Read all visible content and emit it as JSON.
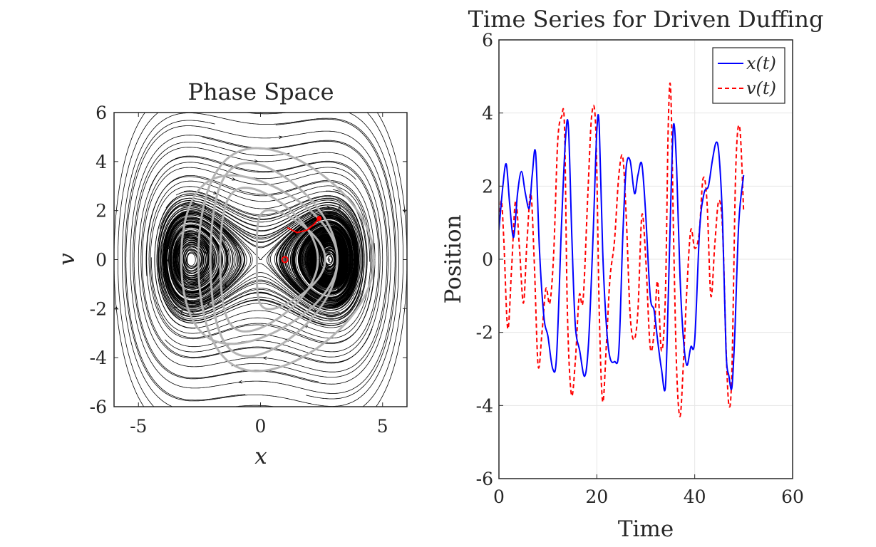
{
  "chart_data": [
    {
      "type": "line",
      "subtype": "phase-portrait-streamlines",
      "title": "Phase Space",
      "xlabel": "x",
      "ylabel": "v",
      "xlim": [
        -6,
        6
      ],
      "ylim": [
        -6,
        6
      ],
      "xticks": [
        "-5",
        "0",
        "5"
      ],
      "yticks": [
        "-6",
        "-4",
        "-2",
        "0",
        "2",
        "4",
        "6"
      ],
      "grid": false,
      "field": {
        "equation": "x' = v, v' = x - x^3/8",
        "fixed_points": [
          [
            0,
            0
          ],
          [
            2.83,
            0
          ]
        ]
      },
      "trajectory_color": "#b3b3b3",
      "streamline_color": "#000000",
      "trail_color": "#ff0000",
      "marker_start": [
        1.0,
        0.0
      ],
      "marker_current": [
        2.4,
        1.68
      ],
      "trail_points": [
        [
          1.1,
          1.3
        ],
        [
          1.5,
          1.1
        ],
        [
          1.9,
          1.2
        ],
        [
          2.2,
          1.45
        ],
        [
          2.4,
          1.68
        ]
      ]
    },
    {
      "type": "line",
      "title": "Time Series for Driven Duffing",
      "xlabel": "Time",
      "ylabel": "Position",
      "xlim": [
        0,
        60
      ],
      "ylim": [
        -6,
        6
      ],
      "xticks": [
        "0",
        "20",
        "40",
        "60"
      ],
      "yticks": [
        "-6",
        "-4",
        "-2",
        "0",
        "2",
        "4",
        "6"
      ],
      "grid": true,
      "legend_position": "top-right",
      "legend": [
        {
          "label": "x(t)",
          "color": "#0000ff",
          "dash": "solid"
        },
        {
          "label": "v(t)",
          "color": "#ff0000",
          "dash": "dashed"
        }
      ],
      "series": [
        {
          "name": "x(t)",
          "color": "#0000ff",
          "dash": "solid",
          "x": [
            0,
            0.8,
            1.5,
            2.2,
            3.0,
            3.8,
            4.6,
            5.4,
            6.2,
            6.8,
            7.5,
            8.3,
            9.2,
            10.0,
            11.0,
            11.8,
            12.8,
            13.6,
            14.2,
            14.9,
            15.6,
            16.5,
            17.5,
            18.3,
            19.2,
            20.0,
            20.5,
            21.2,
            22.0,
            22.7,
            23.6,
            24.5,
            25.3,
            26.0,
            26.8,
            27.7,
            28.4,
            29.2,
            30.0,
            30.9,
            31.7,
            32.4,
            33.2,
            34.0,
            34.6,
            35.2,
            35.7,
            36.3,
            37.0,
            37.7,
            38.4,
            39.2,
            40.0,
            41.0,
            41.9,
            42.8,
            43.6,
            44.4,
            45.0,
            45.7,
            46.4,
            47.0,
            47.6,
            48.2,
            49.0,
            50.0
          ],
          "y": [
            0.8,
            2.0,
            2.6,
            1.5,
            0.6,
            1.8,
            2.4,
            1.8,
            1.4,
            2.3,
            2.9,
            0.2,
            -1.6,
            -2.1,
            -3.0,
            -2.6,
            1.0,
            3.3,
            3.6,
            0.6,
            -1.8,
            -2.5,
            -3.2,
            -2.3,
            0.5,
            3.5,
            3.6,
            0.2,
            -1.9,
            -2.7,
            -2.8,
            -2.5,
            0.6,
            2.5,
            2.7,
            1.8,
            2.3,
            2.6,
            1.2,
            -1.0,
            -1.4,
            -2.2,
            -3.0,
            -3.5,
            -1.0,
            2.0,
            3.7,
            2.5,
            -0.5,
            -2.2,
            -2.9,
            -2.4,
            -2.2,
            0.8,
            1.8,
            2.0,
            2.7,
            3.2,
            2.8,
            1.0,
            -2.5,
            -3.2,
            -3.5,
            -2.0,
            1.0,
            2.3
          ]
        },
        {
          "name": "v(t)",
          "color": "#ff0000",
          "dash": "dashed",
          "x": [
            0,
            0.5,
            1.0,
            1.8,
            2.6,
            3.4,
            4.2,
            5.0,
            5.7,
            6.5,
            7.2,
            8.0,
            8.8,
            9.6,
            10.4,
            11.2,
            12.0,
            12.8,
            13.4,
            14.0,
            14.8,
            15.6,
            16.4,
            17.2,
            18.2,
            19.0,
            19.8,
            20.5,
            21.2,
            22.0,
            22.7,
            23.6,
            24.5,
            25.3,
            26.0,
            26.8,
            27.6,
            28.4,
            29.2,
            30.0,
            30.9,
            31.7,
            32.4,
            33.2,
            34.0,
            34.6,
            35.1,
            35.7,
            36.3,
            37.0,
            37.7,
            38.4,
            39.2,
            40.0,
            40.9,
            41.7,
            42.5,
            43.3,
            44.1,
            44.9,
            45.7,
            46.4,
            47.0,
            47.6,
            48.4,
            49.2,
            50.0
          ],
          "y": [
            0.9,
            1.6,
            0.5,
            -1.9,
            -0.2,
            1.6,
            0.3,
            -1.2,
            0.4,
            1.8,
            0.0,
            -2.9,
            -2.0,
            -0.8,
            -1.2,
            0.2,
            3.2,
            3.9,
            3.6,
            -1.5,
            -3.7,
            -2.8,
            -1.0,
            -1.1,
            1.9,
            4.0,
            3.5,
            -1.5,
            -3.9,
            -2.2,
            -0.5,
            0.5,
            2.3,
            2.8,
            1.2,
            -1.5,
            -2.2,
            -1.4,
            1.2,
            0.0,
            -2.4,
            -2.0,
            -0.6,
            -2.5,
            -1.0,
            3.7,
            4.6,
            0.5,
            -3.0,
            -4.3,
            -2.8,
            -0.8,
            0.8,
            0.3,
            0.7,
            2.2,
            1.6,
            -1.0,
            0.4,
            1.6,
            0.8,
            -2.4,
            -4.0,
            -3.0,
            2.5,
            3.6,
            1.3
          ]
        }
      ]
    }
  ]
}
